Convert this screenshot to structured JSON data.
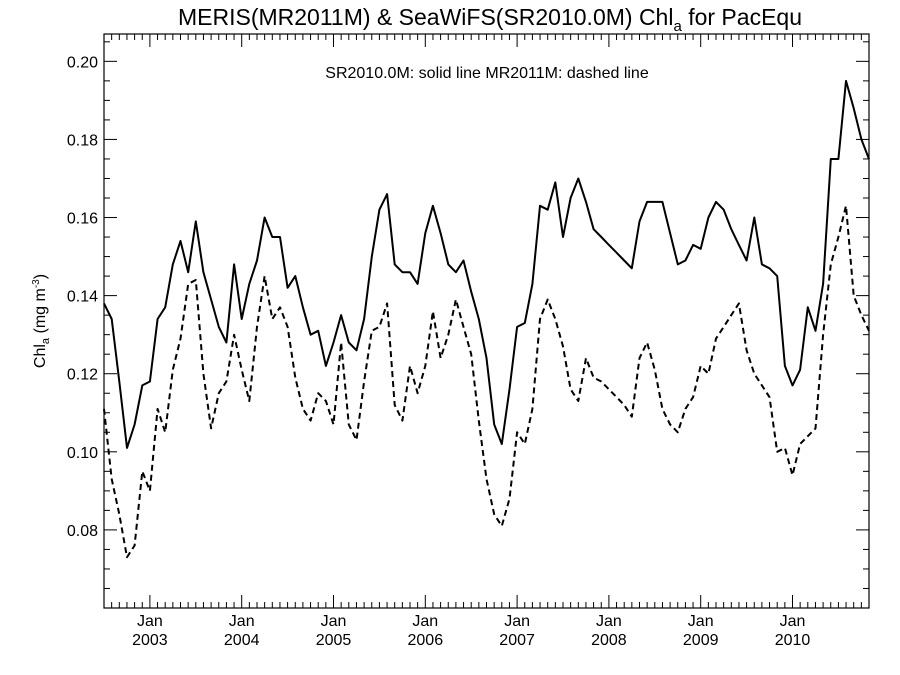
{
  "chart_data": {
    "type": "line",
    "title_main": "MERIS(MR2011M) & SeaWiFS(SR2010.0M)  Chl",
    "title_sub": "a",
    "title_tail": " for PacEqu",
    "ylabel_main": "Chl",
    "ylabel_sub": "a",
    "ylabel_unit": " (mg m",
    "ylabel_sup": "-3",
    "ylabel_close": ")",
    "annotation": "SR2010.0M: solid line   MR2011M: dashed line",
    "ylim": [
      0.06,
      0.207
    ],
    "xlim": [
      "2002-07",
      "2010-11"
    ],
    "yticks": [
      "0.08",
      "0.10",
      "0.12",
      "0.14",
      "0.16",
      "0.18",
      "0.20"
    ],
    "ytick_values": [
      0.08,
      0.1,
      0.12,
      0.14,
      0.16,
      0.18,
      0.2
    ],
    "xticks": [
      {
        "month": "Jan",
        "year": "2003"
      },
      {
        "month": "Jan",
        "year": "2004"
      },
      {
        "month": "Jan",
        "year": "2005"
      },
      {
        "month": "Jan",
        "year": "2006"
      },
      {
        "month": "Jan",
        "year": "2007"
      },
      {
        "month": "Jan",
        "year": "2008"
      },
      {
        "month": "Jan",
        "year": "2009"
      },
      {
        "month": "Jan",
        "year": "2010"
      }
    ],
    "series": [
      {
        "name": "SR2010.0M",
        "style": "solid",
        "x": [
          "2002-07",
          "2002-08",
          "2002-09",
          "2002-10",
          "2002-11",
          "2002-12",
          "2003-01",
          "2003-02",
          "2003-03",
          "2003-04",
          "2003-05",
          "2003-06",
          "2003-07",
          "2003-08",
          "2003-09",
          "2003-10",
          "2003-11",
          "2003-12",
          "2004-01",
          "2004-02",
          "2004-03",
          "2004-04",
          "2004-05",
          "2004-06",
          "2004-07",
          "2004-08",
          "2004-09",
          "2004-10",
          "2004-11",
          "2004-12",
          "2005-01",
          "2005-02",
          "2005-03",
          "2005-04",
          "2005-05",
          "2005-06",
          "2005-07",
          "2005-08",
          "2005-09",
          "2005-10",
          "2005-11",
          "2005-12",
          "2006-01",
          "2006-02",
          "2006-03",
          "2006-04",
          "2006-05",
          "2006-06",
          "2006-07",
          "2006-08",
          "2006-09",
          "2006-10",
          "2006-11",
          "2006-12",
          "2007-01",
          "2007-02",
          "2007-03",
          "2007-04",
          "2007-05",
          "2007-06",
          "2007-07",
          "2007-08",
          "2007-09",
          "2007-10",
          "2007-11",
          "2007-12",
          "2008-01",
          "2008-02",
          "2008-03",
          "2008-04",
          "2008-05",
          "2008-06",
          "2008-07",
          "2008-08",
          "2008-09",
          "2008-10",
          "2008-11",
          "2008-12",
          "2009-01",
          "2009-02",
          "2009-03",
          "2009-04",
          "2009-05",
          "2009-06",
          "2009-07",
          "2009-08",
          "2009-09",
          "2009-10",
          "2009-11",
          "2009-12",
          "2010-01",
          "2010-02",
          "2010-03",
          "2010-04",
          "2010-05",
          "2010-06",
          "2010-07",
          "2010-08",
          "2010-09",
          "2010-10",
          "2010-11"
        ],
        "y": [
          0.138,
          0.134,
          0.118,
          0.101,
          0.107,
          0.117,
          0.118,
          0.134,
          0.137,
          0.148,
          0.154,
          0.146,
          0.159,
          0.146,
          0.139,
          0.132,
          0.128,
          0.148,
          0.134,
          0.143,
          0.149,
          0.16,
          0.155,
          0.155,
          0.142,
          0.145,
          0.137,
          0.13,
          0.131,
          0.122,
          0.128,
          0.135,
          0.128,
          0.126,
          0.134,
          0.15,
          0.162,
          0.166,
          0.148,
          0.146,
          0.146,
          0.143,
          0.156,
          0.163,
          0.156,
          0.148,
          0.146,
          0.149,
          0.141,
          0.134,
          0.124,
          0.107,
          0.102,
          0.116,
          0.132,
          0.133,
          0.143,
          0.163,
          0.162,
          0.169,
          0.155,
          0.165,
          0.17,
          0.164,
          0.157,
          0.155,
          0.153,
          0.151,
          0.149,
          0.147,
          0.159,
          0.164,
          0.164,
          0.164,
          0.156,
          0.148,
          0.149,
          0.153,
          0.152,
          0.16,
          0.164,
          0.162,
          0.157,
          0.153,
          0.149,
          0.16,
          0.148,
          0.147,
          0.145,
          0.122,
          0.117,
          0.121,
          0.137,
          0.131,
          0.143,
          0.175,
          0.175,
          0.195,
          0.188,
          0.18,
          0.175
        ]
      },
      {
        "name": "MR2011M",
        "style": "dashed",
        "x": [
          "2002-07",
          "2002-08",
          "2002-09",
          "2002-10",
          "2002-11",
          "2002-12",
          "2003-01",
          "2003-02",
          "2003-03",
          "2003-04",
          "2003-05",
          "2003-06",
          "2003-07",
          "2003-08",
          "2003-09",
          "2003-10",
          "2003-11",
          "2003-12",
          "2004-01",
          "2004-02",
          "2004-03",
          "2004-04",
          "2004-05",
          "2004-06",
          "2004-07",
          "2004-08",
          "2004-09",
          "2004-10",
          "2004-11",
          "2004-12",
          "2005-01",
          "2005-02",
          "2005-03",
          "2005-04",
          "2005-05",
          "2005-06",
          "2005-07",
          "2005-08",
          "2005-09",
          "2005-10",
          "2005-11",
          "2005-12",
          "2006-01",
          "2006-02",
          "2006-03",
          "2006-04",
          "2006-05",
          "2006-06",
          "2006-07",
          "2006-08",
          "2006-09",
          "2006-10",
          "2006-11",
          "2006-12",
          "2007-01",
          "2007-02",
          "2007-03",
          "2007-04",
          "2007-05",
          "2007-06",
          "2007-07",
          "2007-08",
          "2007-09",
          "2007-10",
          "2007-11",
          "2007-12",
          "2008-01",
          "2008-02",
          "2008-03",
          "2008-04",
          "2008-05",
          "2008-06",
          "2008-07",
          "2008-08",
          "2008-09",
          "2008-10",
          "2008-11",
          "2008-12",
          "2009-01",
          "2009-02",
          "2009-03",
          "2009-04",
          "2009-05",
          "2009-06",
          "2009-07",
          "2009-08",
          "2009-09",
          "2009-10",
          "2009-11",
          "2009-12",
          "2010-01",
          "2010-02",
          "2010-03",
          "2010-04",
          "2010-05",
          "2010-06",
          "2010-07",
          "2010-08",
          "2010-09",
          "2010-10",
          "2010-11"
        ],
        "y": [
          0.111,
          0.093,
          0.084,
          0.073,
          0.076,
          0.095,
          0.09,
          0.111,
          0.105,
          0.121,
          0.129,
          0.143,
          0.144,
          0.12,
          0.106,
          0.115,
          0.118,
          0.13,
          0.121,
          0.113,
          0.132,
          0.145,
          0.134,
          0.137,
          0.132,
          0.119,
          0.111,
          0.108,
          0.115,
          0.113,
          0.107,
          0.128,
          0.107,
          0.103,
          0.118,
          0.131,
          0.132,
          0.138,
          0.112,
          0.108,
          0.122,
          0.115,
          0.122,
          0.136,
          0.124,
          0.13,
          0.139,
          0.132,
          0.125,
          0.108,
          0.093,
          0.084,
          0.081,
          0.088,
          0.105,
          0.102,
          0.111,
          0.134,
          0.139,
          0.134,
          0.127,
          0.116,
          0.113,
          0.124,
          0.119,
          0.118,
          0.116,
          0.114,
          0.112,
          0.109,
          0.124,
          0.128,
          0.121,
          0.111,
          0.107,
          0.105,
          0.111,
          0.114,
          0.122,
          0.12,
          0.129,
          0.132,
          0.135,
          0.138,
          0.126,
          0.12,
          0.117,
          0.114,
          0.1,
          0.101,
          0.094,
          0.102,
          0.104,
          0.106,
          0.13,
          0.148,
          0.155,
          0.163,
          0.14,
          0.135,
          0.131
        ]
      }
    ]
  }
}
